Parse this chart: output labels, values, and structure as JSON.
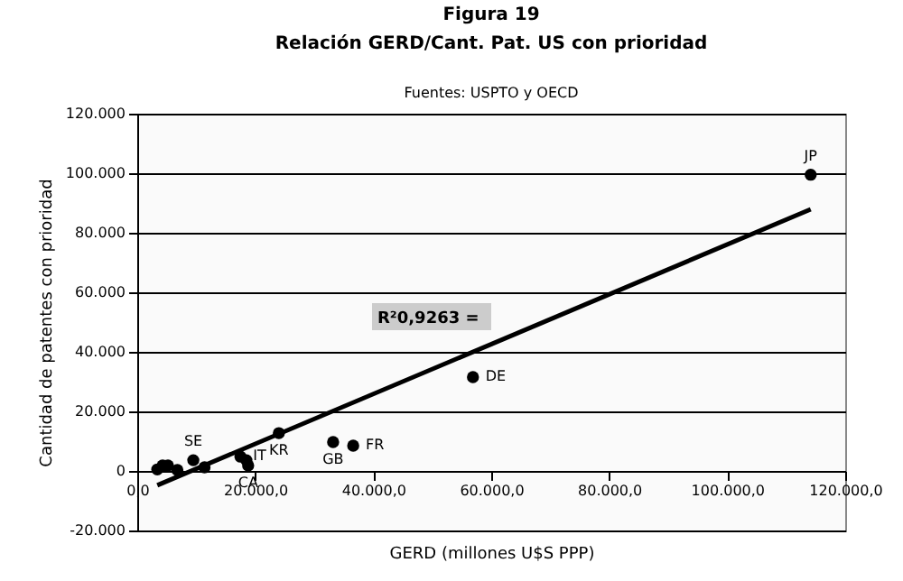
{
  "chart_data": {
    "type": "scatter",
    "title": "Figura 19",
    "subtitle": "Relación GERD/Cant. Pat. US con prioridad",
    "xlabel": "GERD (millones U$S PPP)",
    "ylabel": "Cantidad de patentes con prioridad",
    "series": [
      {
        "color": "#000000",
        "marker": "circle",
        "x": [
          114150,
          56900,
          24000,
          33200,
          36600,
          17500,
          18500,
          18800,
          9500,
          9800,
          11400,
          3400,
          4300,
          5200,
          6800
        ],
        "values": [
          99500,
          31500,
          12700,
          9700,
          8500,
          4800,
          3600,
          1800,
          3600,
          null,
          1200,
          500,
          1800,
          1800,
          300
        ]
      },
      {
        "type": "line",
        "color": "#000000",
        "x": [
          3400,
          114150
        ],
        "values": [
          -4800,
          87900
        ]
      }
    ],
    "xlim": [
      0,
      120000
    ],
    "ylim": [
      -20000,
      120000
    ],
    "xticks": [
      {
        "value": 0,
        "label": "0,0"
      },
      {
        "value": 20000,
        "label": "20.000,0"
      },
      {
        "value": 40000,
        "label": "40.000,0"
      },
      {
        "value": 60000,
        "label": "60.000,0"
      },
      {
        "value": 80000,
        "label": "80.000,0"
      },
      {
        "value": 100000,
        "label": "100.000,0"
      },
      {
        "value": 120000,
        "label": "120.000,0"
      }
    ],
    "yticks": [
      {
        "value": -20000,
        "label": "-20.000"
      },
      0,
      {
        "value": 20000,
        "label": "20.000"
      },
      {
        "value": 40000,
        "label": "40.000"
      },
      {
        "value": 60000,
        "label": "60.000"
      },
      {
        "value": 80000,
        "label": "80.000"
      },
      {
        "value": 100000,
        "label": "100.000"
      },
      {
        "value": 120000,
        "label": "120.000"
      }
    ],
    "grid": "y",
    "annotations": [
      "Fuentes: USPTO y OECD",
      {
        "text": "JP",
        "x": 114150,
        "y": 99500
      },
      {
        "text": "DE",
        "x": 56900,
        "y": 31500
      },
      {
        "text": "KR",
        "x": 24000,
        "y": 12700
      },
      {
        "text": "GB",
        "x": 33200,
        "y": 9700
      },
      {
        "text": "FR",
        "x": 36600,
        "y": 8500
      },
      {
        "text": "IT",
        "x": 17500,
        "y": 4800
      },
      {
        "text": "CA",
        "x": 18800,
        "y": 1800
      },
      {
        "text": "SE",
        "x": 9500,
        "y": 3600
      },
      "R²0,9263 ="
    ]
  }
}
